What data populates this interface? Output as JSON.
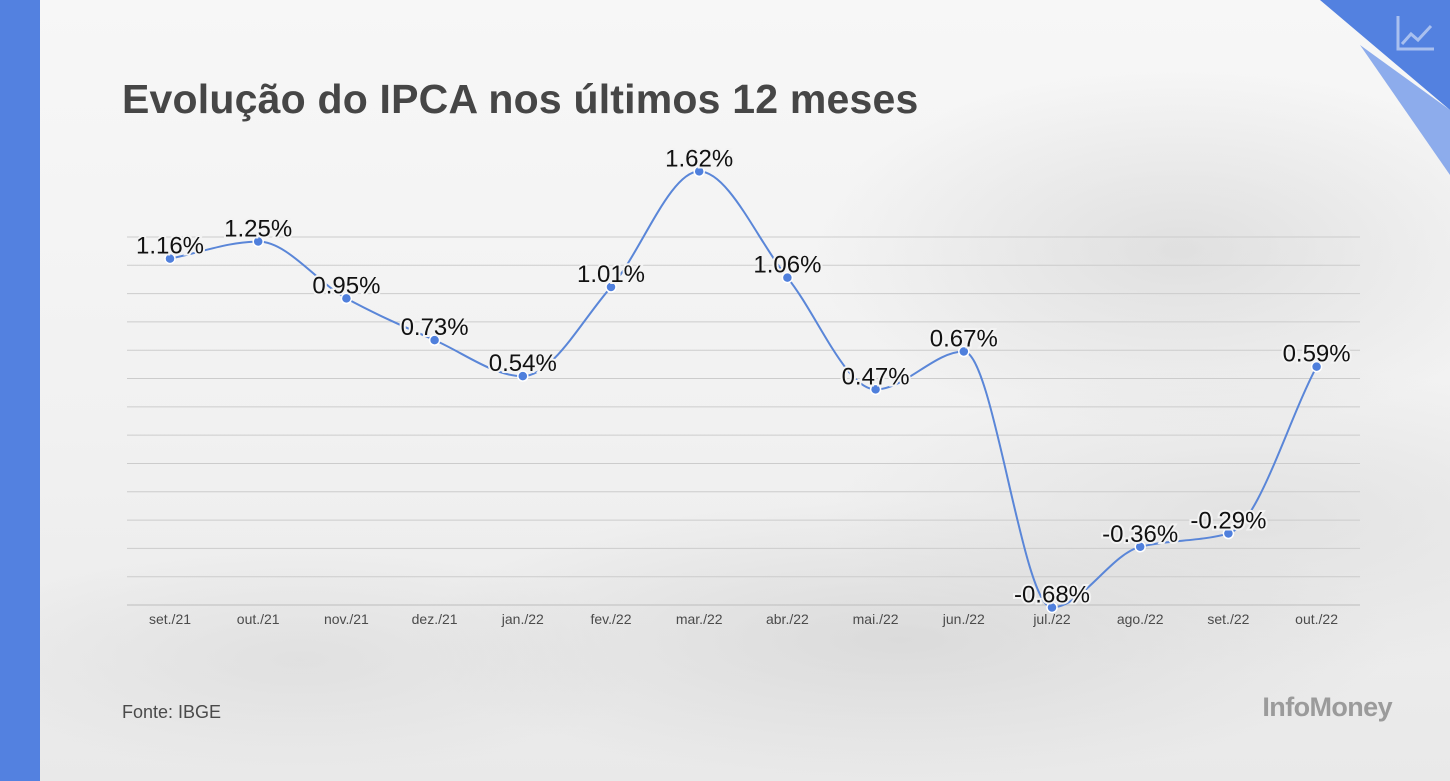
{
  "title": "Evolução do IPCA nos últimos 12 meses",
  "source": "Fonte: IBGE",
  "brand": "InfoMoney",
  "colors": {
    "accent": "#5381e0",
    "line": "#5a86d8",
    "point": "#4f7fdc",
    "title": "#464646",
    "grid": "#cccccc"
  },
  "icons": {
    "corner": "line-chart-icon"
  },
  "chart_data": {
    "type": "line",
    "title": "Evolução do IPCA nos últimos 12 meses",
    "xlabel": "",
    "ylabel": "",
    "grid": true,
    "legend": "none",
    "categories": [
      "set./21",
      "out./21",
      "nov./21",
      "dez./21",
      "jan./22",
      "fev./22",
      "mar./22",
      "abr./22",
      "mai./22",
      "jun./22",
      "jul./22",
      "ago./22",
      "set./22",
      "out./22"
    ],
    "values": [
      1.16,
      1.25,
      0.95,
      0.73,
      0.54,
      1.01,
      1.62,
      1.06,
      0.47,
      0.67,
      -0.68,
      -0.36,
      -0.29,
      0.59
    ],
    "data_labels": [
      "1.16%",
      "1.25%",
      "0.95%",
      "0.73%",
      "0.54%",
      "1.01%",
      "1.62%",
      "1.06%",
      "0.47%",
      "0.67%",
      "-0.68%",
      "-0.36%",
      "-0.29%",
      "0.59%"
    ],
    "ylim": [
      -0.8,
      1.8
    ]
  }
}
